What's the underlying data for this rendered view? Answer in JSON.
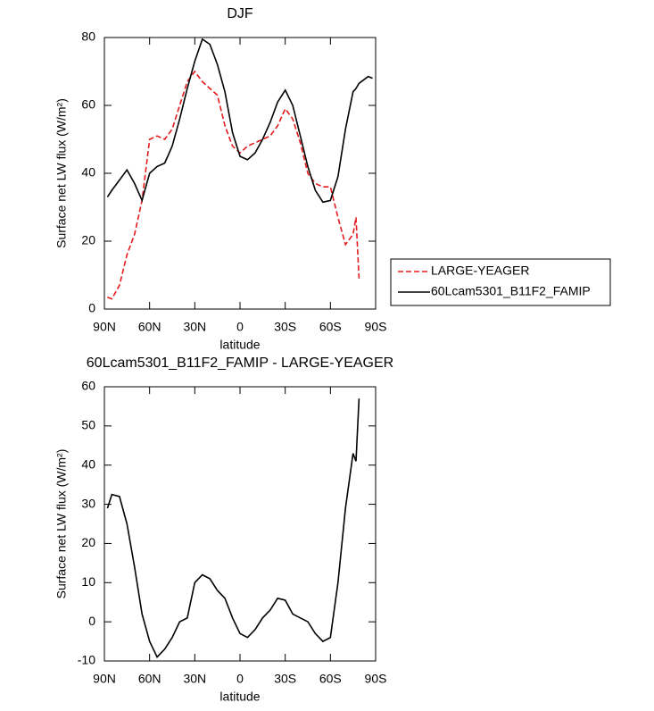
{
  "chart_data": [
    {
      "type": "line",
      "title": "DJF",
      "xlabel": "latitude",
      "ylabel": "Surface net LW flux (W/m²)",
      "x": [
        88,
        85,
        80,
        75,
        70,
        65,
        60,
        55,
        50,
        45,
        40,
        35,
        30,
        25,
        20,
        15,
        10,
        5,
        0,
        -5,
        -10,
        -15,
        -20,
        -25,
        -30,
        -35,
        -40,
        -45,
        -50,
        -55,
        -60,
        -65,
        -70,
        -75,
        -77,
        -79,
        -85,
        -88
      ],
      "xlim": [
        90,
        -90
      ],
      "xticks": [
        {
          "value": 90,
          "label": "90N"
        },
        {
          "value": 60,
          "label": "60N"
        },
        {
          "value": 30,
          "label": "30N"
        },
        0,
        {
          "value": -30,
          "label": "30S"
        },
        {
          "value": -60,
          "label": "60S"
        },
        {
          "value": -90,
          "label": "90S"
        }
      ],
      "ylim": [
        0,
        80
      ],
      "yticks": [
        0,
        20,
        40,
        60,
        80
      ],
      "legend": "right",
      "series": [
        {
          "name": "LARGE-YEAGER",
          "color": "#e41a1c",
          "dash": true,
          "values": [
            3.5,
            3,
            7,
            16,
            22,
            32,
            50,
            51,
            50,
            53,
            60,
            67,
            70,
            67,
            65,
            63,
            54,
            48,
            46,
            48,
            49,
            50,
            51,
            54,
            59,
            56,
            49,
            40,
            37,
            36,
            36,
            27,
            19,
            22,
            27,
            9,
            null,
            null
          ]
        },
        {
          "name": "60Lcam5301_B11F2_FAMIP",
          "color": "#000000",
          "dash": false,
          "values": [
            33,
            35,
            38,
            41,
            37,
            32,
            40,
            42,
            43,
            48,
            56,
            65,
            73,
            79.5,
            78,
            72,
            64,
            52,
            45,
            44,
            46,
            50,
            55,
            61,
            64.5,
            60,
            51,
            42,
            35,
            31.5,
            32,
            39,
            53,
            64,
            65,
            66.5,
            68.5,
            68
          ]
        }
      ]
    },
    {
      "type": "line",
      "title": "60Lcam5301_B11F2_FAMIP - LARGE-YEAGER",
      "xlabel": "latitude",
      "ylabel": "Surface net LW flux (W/m²)",
      "x": [
        88,
        85,
        80,
        75,
        70,
        65,
        60,
        55,
        50,
        45,
        40,
        35,
        30,
        25,
        20,
        15,
        10,
        5,
        0,
        -5,
        -10,
        -15,
        -20,
        -25,
        -30,
        -35,
        -40,
        -45,
        -50,
        -55,
        -60,
        -65,
        -70,
        -75,
        -77,
        -79
      ],
      "xlim": [
        90,
        -90
      ],
      "xticks": [
        {
          "value": 90,
          "label": "90N"
        },
        {
          "value": 60,
          "label": "60N"
        },
        {
          "value": 30,
          "label": "30N"
        },
        0,
        {
          "value": -30,
          "label": "30S"
        },
        {
          "value": -60,
          "label": "60S"
        },
        {
          "value": -90,
          "label": "90S"
        }
      ],
      "ylim": [
        -10,
        60
      ],
      "yticks": [
        -10,
        0,
        10,
        20,
        30,
        40,
        50,
        60
      ],
      "series": [
        {
          "color": "#000000",
          "dash": false,
          "values": [
            29,
            32.5,
            32,
            25,
            14,
            2,
            -5,
            -9,
            -7,
            -4,
            0,
            1,
            10,
            12,
            11,
            8,
            6,
            1,
            -3,
            -4,
            -2,
            1,
            3,
            6,
            5.5,
            2,
            1,
            0,
            -3,
            -5,
            -4,
            10,
            29,
            43,
            41,
            57
          ]
        }
      ]
    }
  ]
}
